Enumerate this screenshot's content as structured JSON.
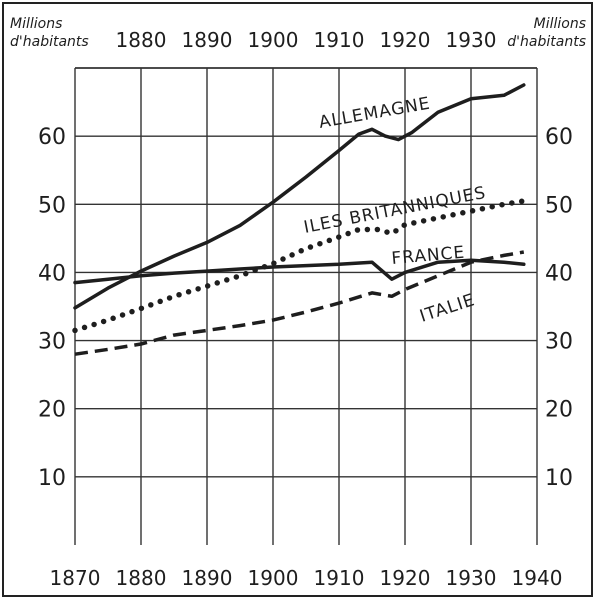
{
  "chart_data": {
    "type": "line",
    "unit_label_left": [
      "Millions",
      "d'habitants"
    ],
    "unit_label_right": [
      "Millions",
      "d'habitants"
    ],
    "xlim": [
      1870,
      1940
    ],
    "ylim": [
      0,
      70
    ],
    "x_ticks_bottom": [
      "1870",
      "1880",
      "1890",
      "1900",
      "1910",
      "1920",
      "1930",
      "1940"
    ],
    "x_ticks_top": [
      "1880",
      "1890",
      "1900",
      "1910",
      "1920",
      "1930"
    ],
    "y_ticks_left": [
      "10",
      "20",
      "30",
      "40",
      "50",
      "60"
    ],
    "y_ticks_right": [
      "10",
      "20",
      "30",
      "40",
      "50",
      "60"
    ],
    "grid": true,
    "series": [
      {
        "name": "ALLEMAGNE",
        "style": "solid",
        "x": [
          1870,
          1875,
          1880,
          1885,
          1890,
          1895,
          1900,
          1905,
          1910,
          1913,
          1915,
          1917,
          1919,
          1921,
          1925,
          1930,
          1935,
          1938
        ],
        "y": [
          34.8,
          37.7,
          40.2,
          42.4,
          44.4,
          46.9,
          50.3,
          54.0,
          57.9,
          60.3,
          61.0,
          60.0,
          59.5,
          60.5,
          63.5,
          65.5,
          66.0,
          67.5
        ]
      },
      {
        "name": "ILES BRITANNIQUES",
        "style": "dotted",
        "x": [
          1870,
          1875,
          1880,
          1885,
          1890,
          1895,
          1900,
          1905,
          1910,
          1913,
          1916,
          1918,
          1920,
          1925,
          1930,
          1935,
          1938
        ],
        "y": [
          31.5,
          33.0,
          34.7,
          36.5,
          38.0,
          39.5,
          41.3,
          43.5,
          45.2,
          46.3,
          46.3,
          45.7,
          47.0,
          48.0,
          49.0,
          50.0,
          50.5
        ]
      },
      {
        "name": "FRANCE",
        "style": "solid",
        "x": [
          1870,
          1875,
          1880,
          1885,
          1890,
          1895,
          1900,
          1905,
          1910,
          1915,
          1918,
          1920,
          1925,
          1930,
          1935,
          1938
        ],
        "y": [
          38.5,
          39.0,
          39.5,
          39.9,
          40.2,
          40.5,
          40.8,
          41.0,
          41.2,
          41.5,
          39.0,
          40.0,
          41.5,
          41.8,
          41.5,
          41.2
        ]
      },
      {
        "name": "ITALIE",
        "style": "dashed",
        "x": [
          1870,
          1875,
          1880,
          1885,
          1890,
          1895,
          1900,
          1905,
          1910,
          1915,
          1918,
          1920,
          1925,
          1930,
          1935,
          1938
        ],
        "y": [
          28.0,
          28.7,
          29.5,
          30.8,
          31.5,
          32.2,
          33.0,
          34.2,
          35.5,
          37.0,
          36.5,
          37.5,
          39.5,
          41.5,
          42.5,
          43.0
        ]
      }
    ]
  }
}
